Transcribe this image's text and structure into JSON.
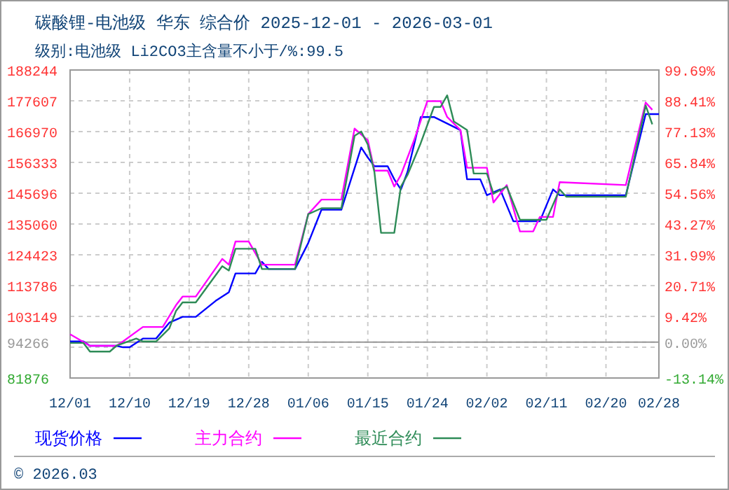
{
  "chart_data": {
    "type": "line",
    "title": "碳酸锂-电池级 华东 综合价 2025-12-01 - 2026-03-01",
    "subtitle": "级别:电池级 Li2CO3主含量不小于/%:99.5",
    "annotations": [
      "© 2026.03"
    ],
    "xlim": [
      "2025-12-01",
      "2026-02-28"
    ],
    "xticks": [
      {
        "value": "2025-12-01",
        "label": "12/01"
      },
      {
        "value": "2025-12-10",
        "label": "12/10"
      },
      {
        "value": "2025-12-19",
        "label": "12/19"
      },
      {
        "value": "2025-12-28",
        "label": "12/28"
      },
      {
        "value": "2026-01-06",
        "label": "01/06"
      },
      {
        "value": "2026-01-15",
        "label": "01/15"
      },
      {
        "value": "2026-01-24",
        "label": "01/24"
      },
      {
        "value": "2026-02-02",
        "label": "02/02"
      },
      {
        "value": "2026-02-11",
        "label": "02/11"
      },
      {
        "value": "2026-02-20",
        "label": "02/20"
      },
      {
        "value": "2026-02-28",
        "label": "02/28"
      }
    ],
    "ylim": [
      81876,
      188244
    ],
    "yticks": [
      81876,
      {
        "value": 92512,
        "label": null
      },
      94266,
      103149,
      113786,
      124423,
      135060,
      145696,
      156333,
      166970,
      177607,
      188244
    ],
    "y2lim": [
      -13.14,
      99.69
    ],
    "y2ticks": [
      {
        "value": -13.14,
        "label": "-13.14%"
      },
      {
        "value": 0,
        "label": "0.00%"
      },
      {
        "value": 9.42,
        "label": "9.42%"
      },
      {
        "value": 20.71,
        "label": "20.71%"
      },
      {
        "value": 31.99,
        "label": "31.99%"
      },
      {
        "value": 43.27,
        "label": "43.27%"
      },
      {
        "value": 54.56,
        "label": "54.56%"
      },
      {
        "value": 65.84,
        "label": "65.84%"
      },
      {
        "value": 77.13,
        "label": "77.13%"
      },
      {
        "value": 88.41,
        "label": "88.41%"
      },
      {
        "value": 99.69,
        "label": "99.69%"
      }
    ],
    "ref_lines": [
      {
        "axis": "y",
        "value": 94266,
        "color": "#999999"
      }
    ],
    "grid": true,
    "legend": "bottom",
    "line_style": "solid",
    "series": [
      {
        "name": "现货价格",
        "color": "#0000ff",
        "x": [
          "2025-12-01",
          "2025-12-03",
          "2025-12-04",
          "2025-12-08",
          "2025-12-09",
          "2025-12-10",
          "2025-12-12",
          "2025-12-14",
          "2025-12-16",
          "2025-12-18",
          "2025-12-20",
          "2025-12-23",
          "2025-12-25",
          "2025-12-26",
          "2025-12-29",
          "2025-12-30",
          "2025-12-31",
          "2026-01-04",
          "2026-01-06",
          "2026-01-08",
          "2026-01-11",
          "2026-01-14",
          "2026-01-15",
          "2026-01-16",
          "2026-01-18",
          "2026-01-19",
          "2026-01-20",
          "2026-01-21",
          "2026-01-23",
          "2026-01-25",
          "2026-01-29",
          "2026-01-30",
          "2026-02-01",
          "2026-02-02",
          "2026-02-04",
          "2026-02-06",
          "2026-02-10",
          "2026-02-12",
          "2026-02-13",
          "2026-02-23",
          "2026-02-26",
          "2026-02-28"
        ],
        "values": [
          94500,
          94500,
          93000,
          93000,
          92500,
          92500,
          95500,
          95500,
          101000,
          103000,
          103000,
          108500,
          111500,
          118000,
          118000,
          122000,
          119500,
          119500,
          128500,
          140000,
          140000,
          161500,
          158000,
          155000,
          155000,
          150500,
          147000,
          153000,
          172000,
          172000,
          167500,
          150500,
          150500,
          145000,
          147000,
          136000,
          136000,
          147000,
          145000,
          145000,
          173000,
          173000
        ]
      },
      {
        "name": "主力合约",
        "color": "#ff00ff",
        "x": [
          "2025-12-01",
          "2025-12-04",
          "2025-12-08",
          "2025-12-09",
          "2025-12-12",
          "2025-12-15",
          "2025-12-17",
          "2025-12-18",
          "2025-12-20",
          "2025-12-24",
          "2025-12-25",
          "2025-12-26",
          "2025-12-28",
          "2025-12-30",
          "2026-01-04",
          "2026-01-06",
          "2026-01-08",
          "2026-01-11",
          "2026-01-13",
          "2026-01-15",
          "2026-01-16",
          "2026-01-18",
          "2026-01-19",
          "2026-01-20",
          "2026-01-22",
          "2026-01-24",
          "2026-01-26",
          "2026-01-27",
          "2026-01-29",
          "2026-01-30",
          "2026-02-02",
          "2026-02-03",
          "2026-02-05",
          "2026-02-07",
          "2026-02-09",
          "2026-02-10",
          "2026-02-12",
          "2026-02-13",
          "2026-02-23",
          "2026-02-26",
          "2026-02-27"
        ],
        "values": [
          97000,
          93000,
          93000,
          94500,
          99500,
          99500,
          107000,
          110000,
          110000,
          123000,
          121000,
          129000,
          129000,
          121000,
          121000,
          138500,
          143500,
          143500,
          168000,
          164000,
          153500,
          153500,
          148000,
          152000,
          164000,
          177500,
          177500,
          172000,
          167500,
          154500,
          154500,
          142500,
          148500,
          132500,
          132500,
          137500,
          137500,
          149500,
          148500,
          177000,
          174500
        ]
      },
      {
        "name": "最近合约",
        "color": "#2e8b57",
        "x": [
          "2025-12-01",
          "2025-12-03",
          "2025-12-04",
          "2025-12-07",
          "2025-12-08",
          "2025-12-11",
          "2025-12-12",
          "2025-12-14",
          "2025-12-16",
          "2025-12-17",
          "2025-12-18",
          "2025-12-20",
          "2025-12-24",
          "2025-12-25",
          "2025-12-26",
          "2025-12-29",
          "2025-12-30",
          "2026-01-04",
          "2026-01-06",
          "2026-01-08",
          "2026-01-11",
          "2026-01-13",
          "2026-01-14",
          "2026-01-15",
          "2026-01-16",
          "2026-01-17",
          "2026-01-19",
          "2026-01-20",
          "2026-01-21",
          "2026-01-23",
          "2026-01-25",
          "2026-01-26",
          "2026-01-27",
          "2026-01-28",
          "2026-01-30",
          "2026-01-31",
          "2026-02-02",
          "2026-02-03",
          "2026-02-05",
          "2026-02-07",
          "2026-02-11",
          "2026-02-13",
          "2026-02-14",
          "2026-02-23",
          "2026-02-26",
          "2026-02-27"
        ],
        "values": [
          94000,
          94000,
          91000,
          91000,
          93000,
          95500,
          94500,
          94500,
          99000,
          105000,
          108000,
          108000,
          120500,
          119000,
          126500,
          126500,
          119500,
          119500,
          138500,
          140500,
          140500,
          165500,
          167000,
          162500,
          153000,
          132000,
          132000,
          148000,
          152000,
          163000,
          175500,
          175500,
          179500,
          170500,
          167500,
          152500,
          152500,
          145500,
          148000,
          136500,
          136500,
          147000,
          144500,
          144500,
          176000,
          169500
        ]
      }
    ]
  }
}
